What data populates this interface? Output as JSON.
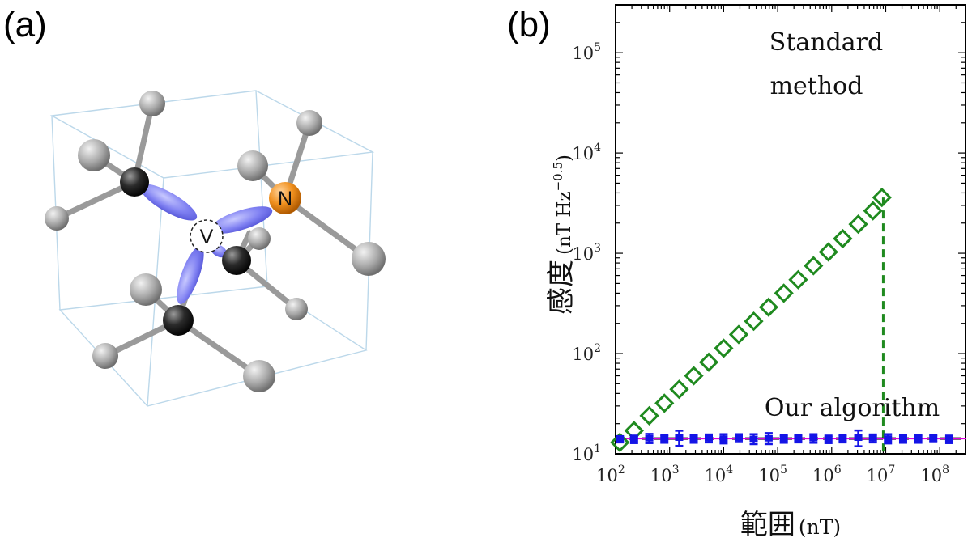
{
  "panels": {
    "a": "(a)",
    "b": "(b)"
  },
  "molecule": {
    "atoms": {
      "vacancy": "V",
      "nitrogen": "N"
    },
    "colors": {
      "carbon": "#2b2b2b",
      "hydrogen": "#a9a9a9",
      "nitrogen": "#f0901e",
      "orbital": "#7f80f2",
      "bond": "#9a9a9a",
      "cell": "#bcd8ea"
    }
  },
  "chart_data": {
    "type": "scatter",
    "title": "",
    "xlabel": "範囲",
    "xunit": "(nT)",
    "ylabel": "感度",
    "yunit_base": "(nT Hz",
    "yunit_exp": "−0.5",
    "yunit_close": ")",
    "xscale": "log",
    "yscale": "log",
    "xlim": [
      100,
      300000000
    ],
    "ylim": [
      10,
      300000
    ],
    "xticks": [
      {
        "value": 100,
        "base": "10",
        "exp": "2"
      },
      {
        "value": 1000,
        "base": "10",
        "exp": "3"
      },
      {
        "value": 10000,
        "base": "10",
        "exp": "4"
      },
      {
        "value": 100000,
        "base": "10",
        "exp": "5"
      },
      {
        "value": 1000000,
        "base": "10",
        "exp": "6"
      },
      {
        "value": 10000000,
        "base": "10",
        "exp": "7"
      },
      {
        "value": 100000000,
        "base": "10",
        "exp": "8"
      }
    ],
    "yticks": [
      {
        "value": 10,
        "base": "10",
        "exp": "1"
      },
      {
        "value": 100,
        "base": "10",
        "exp": "2"
      },
      {
        "value": 1000,
        "base": "10",
        "exp": "3"
      },
      {
        "value": 10000,
        "base": "10",
        "exp": "4"
      },
      {
        "value": 100000,
        "base": "10",
        "exp": "5"
      }
    ],
    "series": [
      {
        "name": "Standard method",
        "label_lines": [
          "Standard",
          "method"
        ],
        "color": "#1f8a1f",
        "marker": "diamond",
        "x": [
          120,
          220,
          420,
          800,
          1500,
          2800,
          5300,
          10000,
          19000,
          36000,
          68000,
          130000,
          240000,
          460000,
          870000,
          1600000,
          3100000,
          5800000,
          8500000
        ],
        "y": [
          13,
          17,
          24,
          32,
          44,
          60,
          82,
          113,
          155,
          210,
          290,
          400,
          545,
          750,
          1030,
          1400,
          1950,
          2650,
          3600
        ]
      },
      {
        "name": "Our algorithm",
        "label_lines": [
          "Our algorithm"
        ],
        "color": "#1414e6",
        "marker": "square-errorbar",
        "x": [
          120,
          220,
          420,
          800,
          1500,
          2800,
          5300,
          10000,
          19000,
          36000,
          68000,
          130000,
          240000,
          460000,
          870000,
          1600000,
          3100000,
          5800000,
          11000000,
          21000000,
          40000000,
          76000000,
          150000000
        ],
        "y": [
          14,
          14,
          14.3,
          14.2,
          14.5,
          14.1,
          14.3,
          14.2,
          14.4,
          14.1,
          14.3,
          14.2,
          14.2,
          14.3,
          14.0,
          14.2,
          14.5,
          14.3,
          14.2,
          14.1,
          14.2,
          14.3,
          14.0
        ],
        "err": [
          1,
          1.2,
          1.5,
          1.3,
          2.5,
          1.2,
          1.3,
          1.5,
          1.3,
          1.6,
          1.8,
          1.3,
          1.2,
          1.4,
          1.2,
          1.2,
          2.6,
          1.3,
          1.5,
          1.2,
          1.3,
          1.2,
          1.2
        ]
      }
    ],
    "reference_lines": [
      {
        "orientation": "vertical",
        "x": 9000000,
        "style": "dashed",
        "color": "#1f8a1f"
      },
      {
        "orientation": "horizontal",
        "y": 14.2,
        "style": "dashed",
        "color": "#000000"
      },
      {
        "orientation": "horizontal",
        "y": 14.2,
        "style": "solid",
        "color": "#e000e0"
      }
    ]
  }
}
